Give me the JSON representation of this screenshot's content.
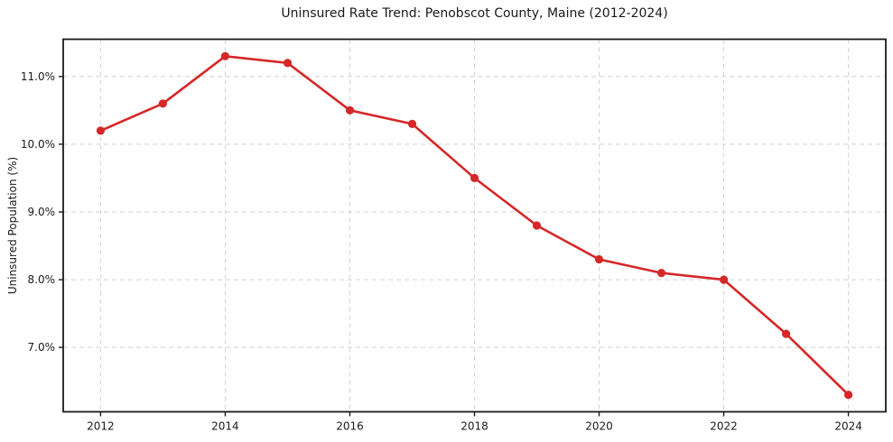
{
  "chart_data": {
    "type": "line",
    "title": "Uninsured Rate Trend: Penobscot County, Maine (2012-2024)",
    "xlabel": "",
    "ylabel": "Uninsured Population (%)",
    "x": [
      2012,
      2013,
      2014,
      2015,
      2016,
      2017,
      2018,
      2019,
      2020,
      2021,
      2022,
      2023,
      2024
    ],
    "values": [
      10.2,
      10.6,
      11.3,
      11.2,
      10.5,
      10.3,
      9.5,
      8.8,
      8.3,
      8.1,
      8.0,
      7.2,
      6.3
    ],
    "xlim": [
      2011.4,
      2024.6
    ],
    "ylim": [
      6.05,
      11.55
    ],
    "xticks": [
      {
        "value": 2012,
        "label": "2012"
      },
      {
        "value": 2014,
        "label": "2014"
      },
      {
        "value": 2016,
        "label": "2016"
      },
      {
        "value": 2018,
        "label": "2018"
      },
      {
        "value": 2020,
        "label": "2020"
      },
      {
        "value": 2022,
        "label": "2022"
      },
      {
        "value": 2024,
        "label": "2024"
      }
    ],
    "yticks": [
      {
        "value": 7.0,
        "label": "7.0%"
      },
      {
        "value": 8.0,
        "label": "8.0%"
      },
      {
        "value": 9.0,
        "label": "9.0%"
      },
      {
        "value": 10.0,
        "label": "10.0%"
      },
      {
        "value": 11.0,
        "label": "11.0%"
      }
    ],
    "grid": true,
    "legend": false,
    "colors": {
      "line": "#d62728",
      "marker": "#d62728",
      "grid": "#d2d2d2",
      "spine": "#1a1a1a",
      "text": "#1a1a1a",
      "background": "#ffffff"
    }
  }
}
